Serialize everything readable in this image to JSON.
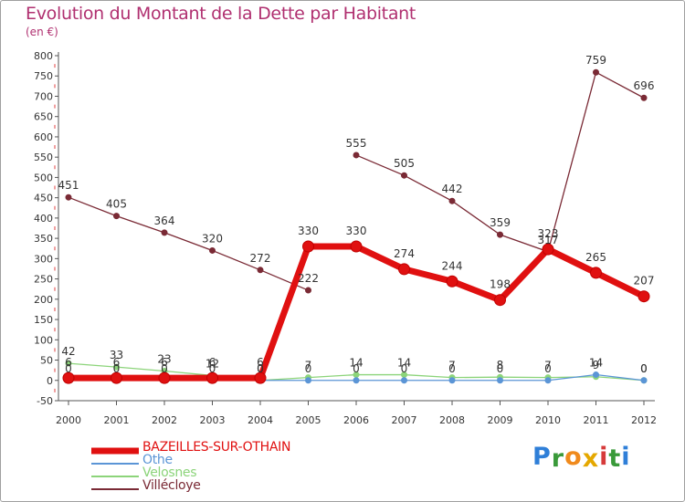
{
  "chart_data": {
    "type": "line",
    "title": "Evolution du Montant de la Dette par Habitant",
    "ylabel": "(en €)",
    "xlabel": "",
    "ylim": [
      -50,
      800
    ],
    "yticks": [
      -50,
      0,
      50,
      100,
      150,
      200,
      250,
      300,
      350,
      400,
      450,
      500,
      550,
      600,
      650,
      700,
      750,
      800
    ],
    "categories": [
      "2000",
      "2001",
      "2002",
      "2003",
      "2004",
      "2005",
      "2006",
      "2007",
      "2008",
      "2009",
      "2010",
      "2011",
      "2012"
    ],
    "grid": false,
    "legend_position": "bottom-left",
    "series": [
      {
        "name": "Villécloye",
        "color": "#7a2a35",
        "values": [
          451,
          405,
          364,
          320,
          272,
          222,
          555,
          505,
          442,
          359,
          317,
          759,
          696
        ],
        "labels": [
          "451",
          "405",
          "364",
          "320",
          "272",
          "222",
          "555",
          "505",
          "442",
          "359",
          "317",
          "759",
          "696"
        ]
      },
      {
        "name": "Velosnes",
        "color": "#8cd47a",
        "values": [
          42,
          33,
          23,
          12,
          0,
          7,
          14,
          14,
          7,
          8,
          7,
          9,
          0
        ],
        "labels": [
          "42",
          "33",
          "23",
          "12",
          "0",
          "7",
          "14",
          "14",
          "7",
          "8",
          "7",
          "9",
          "0"
        ]
      },
      {
        "name": "Othe",
        "color": "#5b95d6",
        "values": [
          0,
          0,
          0,
          0,
          0,
          0,
          0,
          0,
          0,
          0,
          0,
          14,
          0
        ],
        "labels": [
          "0",
          "0",
          "0",
          "0",
          "0",
          "0",
          "0",
          "0",
          "0",
          "0",
          "0",
          "14",
          "0"
        ]
      },
      {
        "name": "BAZEILLES-SUR-OTHAIN",
        "color": "#e01010",
        "values": [
          6,
          6,
          6,
          6,
          6,
          330,
          330,
          274,
          244,
          198,
          323,
          265,
          207
        ],
        "labels": [
          "6",
          "6",
          "6",
          "6",
          "6",
          "330",
          "330",
          "274",
          "244",
          "198",
          "323",
          "265",
          "207"
        ]
      }
    ]
  },
  "legend": {
    "items": [
      {
        "label": "BAZEILLES-SUR-OTHAIN",
        "color": "#e01010"
      },
      {
        "label": "Othe",
        "color": "#5b95d6"
      },
      {
        "label": "Velosnes",
        "color": "#8cd47a"
      },
      {
        "label": "Villécloye",
        "color": "#7a2a35"
      }
    ]
  },
  "brand": {
    "letters": [
      "P",
      "r",
      "o",
      "x",
      "i",
      "t",
      "i"
    ],
    "colors": [
      "#2f7fd8",
      "#3a9a3a",
      "#f08a1c",
      "#e5a800",
      "#d63a3a",
      "#3a9a3a",
      "#2f7fd8"
    ]
  }
}
